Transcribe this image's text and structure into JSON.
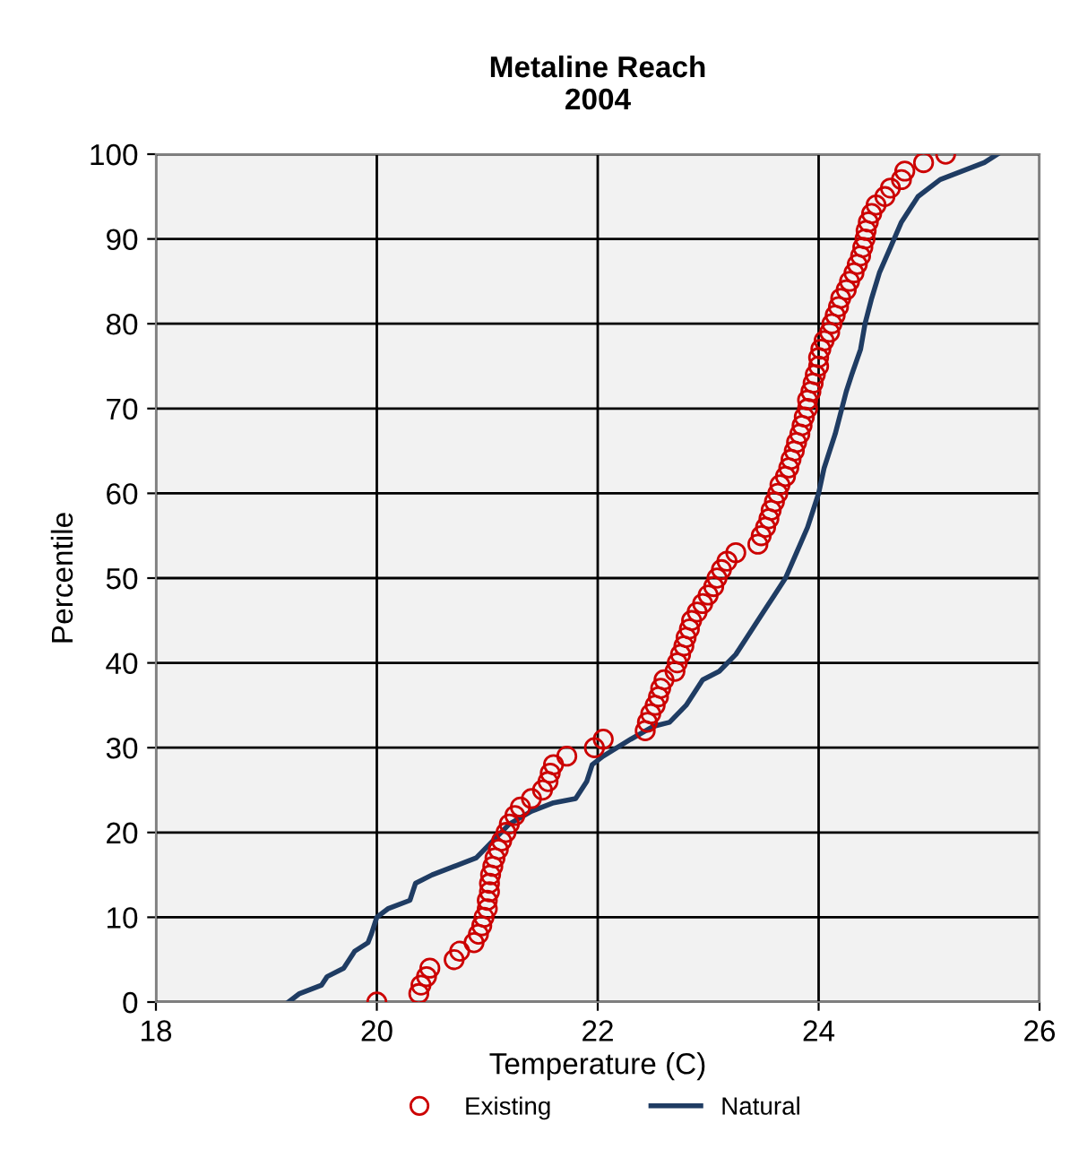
{
  "chart_data": {
    "type": "scatter",
    "title": "Metaline Reach\n2004",
    "xlabel": "Temperature (C)",
    "ylabel": "Percentile",
    "xlim": [
      18,
      26
    ],
    "xticks": [
      18,
      20,
      22,
      24,
      26
    ],
    "ylim": [
      0,
      100
    ],
    "yticks": [
      0,
      10,
      20,
      30,
      40,
      50,
      60,
      70,
      80,
      90,
      100
    ],
    "grid": true,
    "legend": "bottom",
    "series": [
      {
        "name": "Existing",
        "marker": "circle",
        "color": "#cc0000",
        "x": [
          20.0,
          20.38,
          20.4,
          20.45,
          20.48,
          20.7,
          20.75,
          20.88,
          20.92,
          20.95,
          20.97,
          21.0,
          21.0,
          21.02,
          21.02,
          21.03,
          21.05,
          21.07,
          21.1,
          21.13,
          21.17,
          21.2,
          21.25,
          21.3,
          21.4,
          21.5,
          21.55,
          21.57,
          21.6,
          21.72,
          21.97,
          22.05,
          22.43,
          22.45,
          22.48,
          22.52,
          22.55,
          22.57,
          22.6,
          22.7,
          22.72,
          22.75,
          22.78,
          22.8,
          22.83,
          22.85,
          22.9,
          22.95,
          23.0,
          23.05,
          23.08,
          23.12,
          23.17,
          23.25,
          23.45,
          23.48,
          23.52,
          23.55,
          23.57,
          23.6,
          23.63,
          23.65,
          23.7,
          23.73,
          23.75,
          23.78,
          23.8,
          23.83,
          23.85,
          23.87,
          23.9,
          23.9,
          23.93,
          23.95,
          23.97,
          24.0,
          24.0,
          24.02,
          24.05,
          24.1,
          24.12,
          24.15,
          24.18,
          24.2,
          24.25,
          24.28,
          24.32,
          24.35,
          24.38,
          24.4,
          24.42,
          24.43,
          24.45,
          24.48,
          24.52,
          24.6,
          24.65,
          24.75,
          24.78,
          24.95,
          25.15
        ],
        "values": [
          0,
          1,
          2,
          3,
          4,
          5,
          6,
          7,
          8,
          9,
          10,
          11,
          12,
          13,
          14,
          15,
          16,
          17,
          18,
          19,
          20,
          21,
          22,
          23,
          24,
          25,
          26,
          27,
          28,
          29,
          30,
          31,
          32,
          33,
          34,
          35,
          36,
          37,
          38,
          39,
          40,
          41,
          42,
          43,
          44,
          45,
          46,
          47,
          48,
          49,
          50,
          51,
          52,
          53,
          54,
          55,
          56,
          57,
          58,
          59,
          60,
          61,
          62,
          63,
          64,
          65,
          66,
          67,
          68,
          69,
          70,
          71,
          72,
          73,
          74,
          75,
          76,
          77,
          78,
          79,
          80,
          81,
          82,
          83,
          84,
          85,
          86,
          87,
          88,
          89,
          90,
          91,
          92,
          93,
          94,
          95,
          96,
          97,
          98,
          99,
          100
        ]
      },
      {
        "name": "Natural",
        "type": "line",
        "marker": "none",
        "line_style": "solid",
        "color": "#1f3c63",
        "x": [
          19.2,
          19.3,
          19.5,
          19.55,
          19.7,
          19.75,
          19.8,
          19.92,
          19.95,
          20.0,
          20.1,
          20.3,
          20.35,
          20.5,
          20.7,
          20.9,
          21.05,
          21.2,
          21.4,
          21.6,
          21.8,
          21.9,
          21.95,
          22.05,
          22.3,
          22.5,
          22.65,
          22.8,
          22.95,
          23.1,
          23.25,
          23.35,
          23.5,
          23.6,
          23.7,
          23.8,
          23.9,
          23.95,
          24.0,
          24.05,
          24.15,
          24.25,
          24.3,
          24.38,
          24.42,
          24.48,
          24.55,
          24.65,
          24.75,
          24.9,
          25.1,
          25.3,
          25.5,
          25.62
        ],
        "values": [
          0,
          1,
          2,
          3,
          4,
          5,
          6,
          7,
          8,
          10,
          11,
          12,
          14,
          15,
          16,
          17,
          19,
          21,
          22.5,
          23.5,
          24,
          26,
          28,
          29,
          31,
          32.5,
          33,
          35,
          38,
          39,
          41,
          43,
          46,
          48,
          50,
          53,
          56,
          58,
          60,
          63,
          67,
          72,
          74,
          77,
          80,
          83,
          86,
          89,
          92,
          95,
          97,
          98,
          99,
          100
        ]
      }
    ]
  }
}
